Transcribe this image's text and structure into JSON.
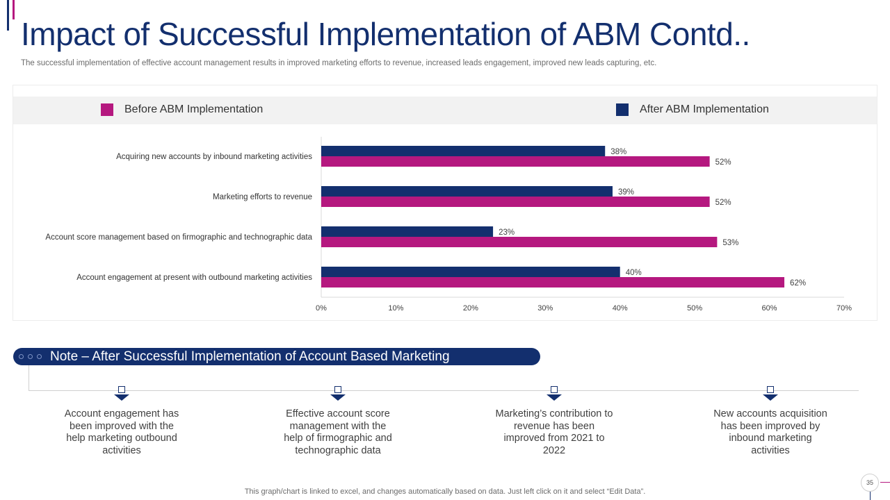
{
  "title": "Impact of Successful Implementation of ABM Contd..",
  "subtitle": "The successful implementation of effective account management results in improved marketing efforts to revenue, increased leads engagement, improved new leads capturing, etc.",
  "colors": {
    "navy": "#132f6e",
    "magenta": "#b5187f"
  },
  "chart_data": {
    "type": "bar",
    "orientation": "horizontal",
    "title": "",
    "categories": [
      "Acquiring new accounts by inbound marketing activities",
      "Marketing efforts to revenue",
      "Account score management based on firmographic and technographic data",
      "Account engagement at present with outbound marketing activities"
    ],
    "series": [
      {
        "name": "After ABM Implementation",
        "color": "#132f6e",
        "values": [
          38,
          39,
          23,
          40
        ],
        "labels": [
          "38%",
          "39%",
          "23%",
          "40%"
        ]
      },
      {
        "name": "Before ABM Implementation",
        "color": "#b5187f",
        "values": [
          52,
          52,
          53,
          62
        ],
        "labels": [
          "52%",
          "52%",
          "53%",
          "62%"
        ]
      }
    ],
    "legend": [
      {
        "name": "Before ABM Implementation",
        "color": "#b5187f"
      },
      {
        "name": "After ABM Implementation",
        "color": "#132f6e"
      }
    ],
    "xlim": [
      0,
      70
    ],
    "xticks": [
      0,
      10,
      20,
      30,
      40,
      50,
      60,
      70
    ],
    "xtick_labels": [
      "0%",
      "10%",
      "20%",
      "30%",
      "40%",
      "50%",
      "60%",
      "70%"
    ],
    "xlabel": "",
    "ylabel": "",
    "legend_position": "top",
    "grid": false
  },
  "note": {
    "title": "Note – After Successful Implementation of Account Based Marketing",
    "points": [
      "Account engagement has been improved with the help marketing outbound activities",
      "Effective account score management with the help of firmographic and technographic data",
      "Marketing’s contribution to revenue has been improved from 2021 to 2022",
      "New accounts acquisition has been improved by inbound marketing activities"
    ]
  },
  "footer_note": "This graph/chart is linked to excel,  and changes automatically based on data. Just left click on it and select “Edit Data”.",
  "page_number": "35"
}
